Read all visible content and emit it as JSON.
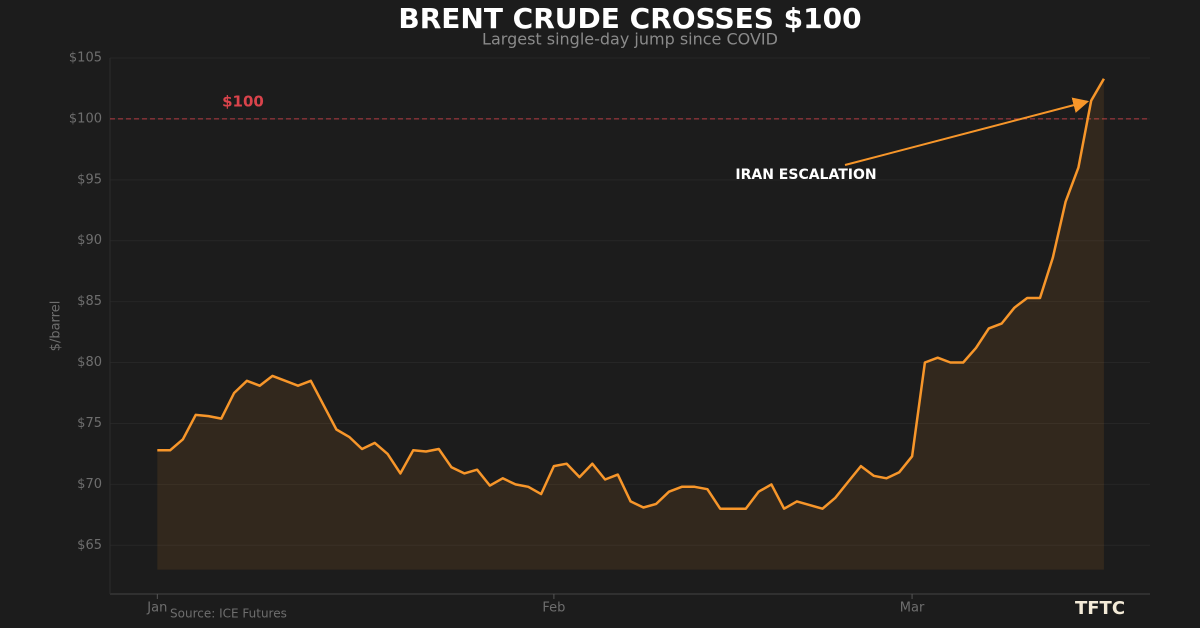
{
  "chart_data": {
    "type": "line",
    "title": "BRENT CRUDE CROSSES $100",
    "subtitle": "Largest single-day jump since COVID",
    "y_label": "$/barrel",
    "source": "Source: ICE Futures",
    "logo": "TFTC",
    "x": [
      0,
      1,
      2,
      3,
      4,
      5,
      6,
      7,
      8,
      9,
      10,
      11,
      12,
      13,
      14,
      15,
      16,
      17,
      18,
      19,
      20,
      21,
      22,
      23,
      24,
      25,
      26,
      27,
      28,
      29,
      30,
      31,
      32,
      33,
      34,
      35,
      36,
      37,
      38,
      39,
      40,
      41,
      42,
      43,
      44,
      45,
      46,
      47,
      48,
      49,
      50,
      51,
      52,
      53,
      54,
      55,
      56,
      57,
      58,
      59,
      60,
      61,
      62,
      63,
      64,
      65,
      66,
      67,
      68,
      69,
      70,
      71,
      72,
      73,
      74
    ],
    "series": [
      {
        "name": "Brent",
        "color": "#f7962a",
        "values": [
          72.8,
          72.8,
          73.7,
          75.7,
          75.6,
          75.4,
          77.5,
          78.5,
          78.1,
          78.9,
          78.5,
          78.1,
          78.5,
          76.5,
          74.5,
          73.9,
          72.9,
          73.4,
          72.5,
          70.9,
          72.8,
          72.7,
          72.9,
          71.4,
          70.9,
          71.2,
          69.9,
          70.5,
          70.0,
          69.8,
          69.2,
          71.5,
          71.7,
          70.6,
          71.7,
          70.4,
          70.8,
          68.6,
          68.1,
          68.4,
          69.4,
          69.8,
          69.8,
          69.6,
          68.0,
          68.0,
          68.0,
          69.4,
          70.0,
          68.0,
          68.6,
          68.3,
          68.0,
          68.9,
          70.2,
          71.5,
          70.7,
          70.5,
          71.0,
          72.3,
          80.0,
          80.4,
          80.0,
          80.0,
          81.2,
          82.8,
          83.2,
          84.5,
          85.3,
          85.3,
          88.6,
          93.2,
          96.0,
          101.5,
          103.3
        ]
      }
    ],
    "fill_to": 63,
    "xlim": [
      -3.7,
      77.6
    ],
    "xticks": [
      {
        "value": 0,
        "label": "Jan"
      },
      {
        "value": 31,
        "label": "Feb"
      },
      {
        "value": 59,
        "label": "Mar"
      }
    ],
    "ylim": [
      61,
      105
    ],
    "yticks": [
      {
        "value": 65,
        "label": "$65"
      },
      {
        "value": 70,
        "label": "$70"
      },
      {
        "value": 75,
        "label": "$75"
      },
      {
        "value": 80,
        "label": "$80"
      },
      {
        "value": 85,
        "label": "$85"
      },
      {
        "value": 90,
        "label": "$90"
      },
      {
        "value": 95,
        "label": "$95"
      },
      {
        "value": 100,
        "label": "$100"
      },
      {
        "value": 105,
        "label": "$105"
      }
    ],
    "grid": true,
    "reference_line": {
      "value": 100,
      "label": "$100",
      "color": "#d9434b"
    },
    "annotation": {
      "text": "IRAN ESCALATION",
      "x": 73,
      "y": 101.5
    }
  }
}
